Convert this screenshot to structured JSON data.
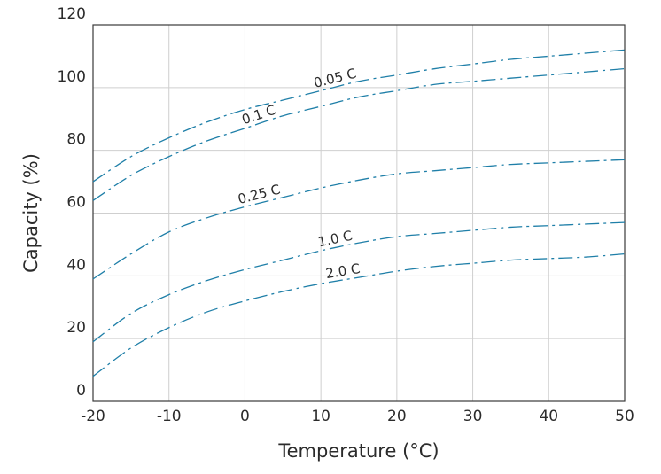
{
  "chart_data": {
    "type": "line",
    "title": "",
    "xlabel": "Temperature (°C)",
    "ylabel": "Capacity (%)",
    "xlim": [
      -20,
      50
    ],
    "ylim": [
      0,
      120
    ],
    "xticks": [
      "-20",
      "-10",
      "0",
      "10",
      "20",
      "30",
      "40",
      "50"
    ],
    "yticks": [
      "0",
      "20",
      "40",
      "60",
      "80",
      "100",
      "120"
    ],
    "grid": true,
    "line_style": "dash-dot",
    "line_color": "#1f7fa8",
    "x": [
      -20,
      -15,
      -10,
      -5,
      0,
      5,
      10,
      15,
      20,
      25,
      30,
      35,
      40,
      45,
      50
    ],
    "series": [
      {
        "name": "0.05 C",
        "values": [
          70,
          78,
          84,
          89,
          93,
          96,
          99,
          102,
          104,
          106,
          107.5,
          109,
          110,
          111,
          112
        ]
      },
      {
        "name": "0.1 C",
        "values": [
          64,
          72,
          78,
          83,
          87,
          91,
          94,
          97,
          99,
          101,
          102,
          103,
          104,
          105,
          106
        ]
      },
      {
        "name": "0.25 C",
        "values": [
          39,
          47,
          54,
          58.5,
          62,
          65,
          68,
          70.5,
          72.5,
          73.5,
          74.5,
          75.5,
          76,
          76.5,
          77
        ]
      },
      {
        "name": "1.0 C",
        "values": [
          19,
          28,
          34,
          38.5,
          42,
          45,
          48,
          50.5,
          52.5,
          53.5,
          54.5,
          55.5,
          56,
          56.5,
          57
        ]
      },
      {
        "name": "2.0 C",
        "values": [
          8,
          17,
          23.5,
          28.5,
          32,
          35,
          37.5,
          39.5,
          41.5,
          43,
          44,
          45,
          45.5,
          46,
          47
        ]
      }
    ]
  }
}
